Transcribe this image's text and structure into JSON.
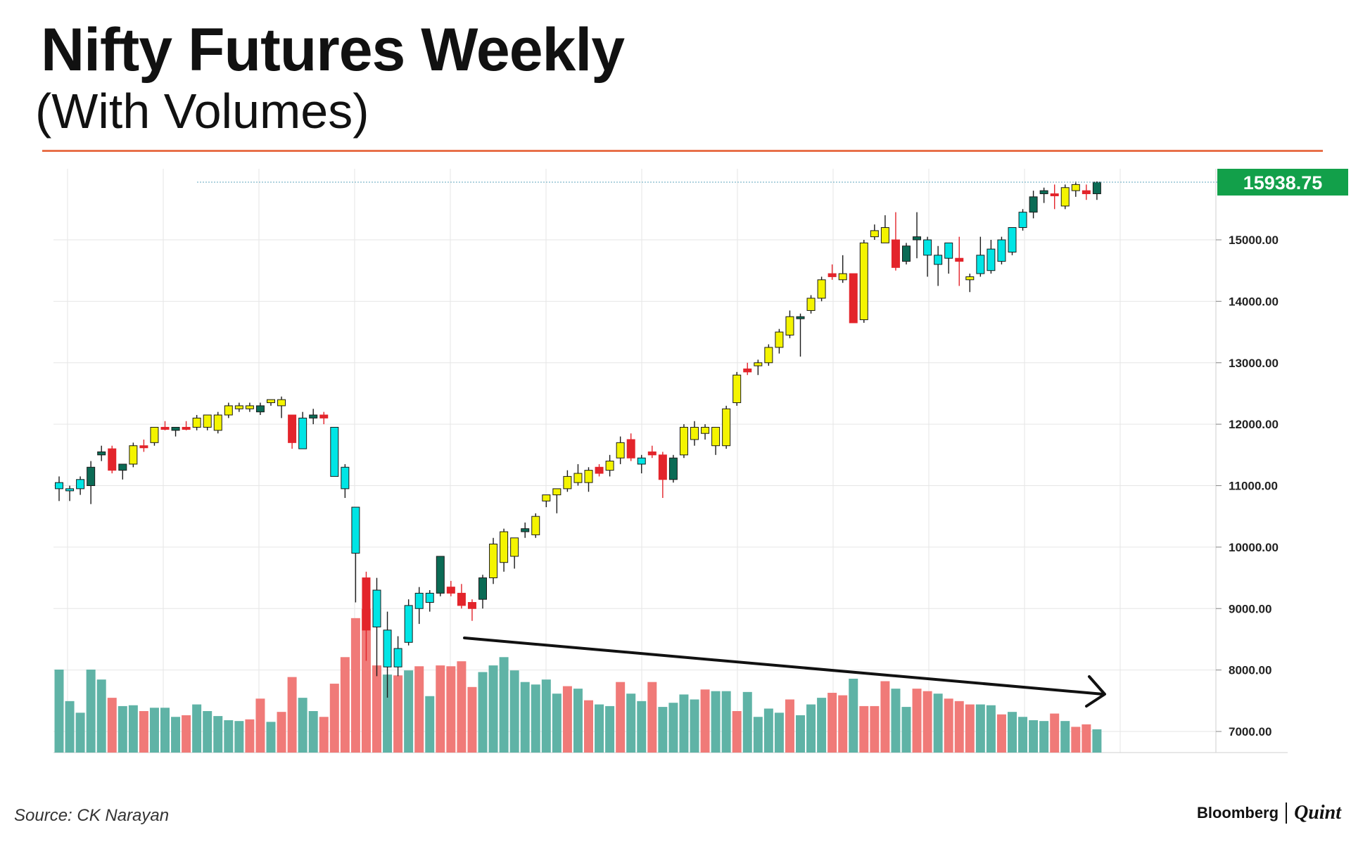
{
  "header": {
    "title": "Nifty Futures Weekly",
    "subtitle": "(With Volumes)"
  },
  "footer": {
    "source": "Source: CK Narayan",
    "brand_primary": "Bloomberg",
    "brand_secondary": "Quint"
  },
  "colors": {
    "rule": "#e8704a",
    "grid": "#e6e6e6",
    "up_cyan": "#00e5e5",
    "up_yellow": "#f4f400",
    "down_red": "#e3242b",
    "dark_green": "#0b6b55",
    "vol_teal": "#5fb3a6",
    "vol_red": "#f07a78",
    "price_tag": "#12a04a",
    "arrow": "#111111"
  },
  "chart_data": {
    "type": "candlestick",
    "interval": "weekly",
    "ylim": [
      6700,
      16100
    ],
    "yticks": [
      "15000.00",
      "14000.00",
      "13000.00",
      "12000.00",
      "11000.00",
      "10000.00",
      "9000.00",
      "8000.00",
      "7000.00"
    ],
    "ytick_values": [
      15000,
      14000,
      13000,
      12000,
      11000,
      10000,
      9000,
      8000,
      7000
    ],
    "last_price": "15938.75",
    "last_price_value": 15938.75,
    "legend": "none",
    "grid": true,
    "annotation": "declining volume trend arrow",
    "candles": [
      {
        "o": 11050,
        "h": 11150,
        "l": 10750,
        "c": 10950,
        "color": "cyan"
      },
      {
        "o": 10950,
        "h": 11000,
        "l": 10750,
        "c": 10950,
        "color": "cyan"
      },
      {
        "o": 10950,
        "h": 11150,
        "l": 10850,
        "c": 11100,
        "color": "cyan"
      },
      {
        "o": 11000,
        "h": 11400,
        "l": 10700,
        "c": 11300,
        "color": "green"
      },
      {
        "o": 11500,
        "h": 11650,
        "l": 11400,
        "c": 11550,
        "color": "green"
      },
      {
        "o": 11600,
        "h": 11650,
        "l": 11200,
        "c": 11250,
        "color": "red"
      },
      {
        "o": 11250,
        "h": 11350,
        "l": 11100,
        "c": 11350,
        "color": "green"
      },
      {
        "o": 11350,
        "h": 11700,
        "l": 11300,
        "c": 11650,
        "color": "yellow"
      },
      {
        "o": 11650,
        "h": 11750,
        "l": 11550,
        "c": 11650,
        "color": "red"
      },
      {
        "o": 11700,
        "h": 11950,
        "l": 11650,
        "c": 11950,
        "color": "yellow"
      },
      {
        "o": 11950,
        "h": 12050,
        "l": 11900,
        "c": 11950,
        "color": "red"
      },
      {
        "o": 11900,
        "h": 11950,
        "l": 11800,
        "c": 11950,
        "color": "green"
      },
      {
        "o": 11950,
        "h": 12050,
        "l": 11900,
        "c": 11950,
        "color": "red"
      },
      {
        "o": 11950,
        "h": 12150,
        "l": 11900,
        "c": 12100,
        "color": "yellow"
      },
      {
        "o": 11950,
        "h": 12150,
        "l": 11900,
        "c": 12150,
        "color": "yellow"
      },
      {
        "o": 11900,
        "h": 12200,
        "l": 11850,
        "c": 12150,
        "color": "yellow"
      },
      {
        "o": 12150,
        "h": 12350,
        "l": 12100,
        "c": 12300,
        "color": "yellow"
      },
      {
        "o": 12250,
        "h": 12350,
        "l": 12200,
        "c": 12300,
        "color": "yellow"
      },
      {
        "o": 12300,
        "h": 12350,
        "l": 12200,
        "c": 12250,
        "color": "yellow"
      },
      {
        "o": 12200,
        "h": 12350,
        "l": 12150,
        "c": 12300,
        "color": "green"
      },
      {
        "o": 12350,
        "h": 12400,
        "l": 12300,
        "c": 12400,
        "color": "yellow"
      },
      {
        "o": 12400,
        "h": 12450,
        "l": 12100,
        "c": 12300,
        "color": "yellow"
      },
      {
        "o": 12150,
        "h": 12150,
        "l": 11600,
        "c": 11700,
        "color": "red"
      },
      {
        "o": 11600,
        "h": 12200,
        "l": 11600,
        "c": 12100,
        "color": "cyan"
      },
      {
        "o": 12100,
        "h": 12250,
        "l": 12000,
        "c": 12150,
        "color": "green"
      },
      {
        "o": 12150,
        "h": 12200,
        "l": 12000,
        "c": 12100,
        "color": "red"
      },
      {
        "o": 11950,
        "h": 11950,
        "l": 11150,
        "c": 11150,
        "color": "cyan"
      },
      {
        "o": 11300,
        "h": 11350,
        "l": 10800,
        "c": 10950,
        "color": "cyan"
      },
      {
        "o": 10650,
        "h": 10650,
        "l": 9100,
        "c": 9900,
        "color": "cyan"
      },
      {
        "o": 9500,
        "h": 9600,
        "l": 8150,
        "c": 8650,
        "color": "red"
      },
      {
        "o": 9300,
        "h": 9500,
        "l": 7900,
        "c": 8700,
        "color": "cyan"
      },
      {
        "o": 8650,
        "h": 8950,
        "l": 7550,
        "c": 8050,
        "color": "cyan"
      },
      {
        "o": 8050,
        "h": 8550,
        "l": 7900,
        "c": 8350,
        "color": "cyan"
      },
      {
        "o": 8450,
        "h": 9150,
        "l": 8400,
        "c": 9050,
        "color": "cyan"
      },
      {
        "o": 9000,
        "h": 9350,
        "l": 8750,
        "c": 9250,
        "color": "cyan"
      },
      {
        "o": 9100,
        "h": 9300,
        "l": 8950,
        "c": 9250,
        "color": "cyan"
      },
      {
        "o": 9250,
        "h": 9850,
        "l": 9200,
        "c": 9850,
        "color": "green"
      },
      {
        "o": 9350,
        "h": 9450,
        "l": 9200,
        "c": 9250,
        "color": "red"
      },
      {
        "o": 9250,
        "h": 9400,
        "l": 9000,
        "c": 9050,
        "color": "red"
      },
      {
        "o": 9100,
        "h": 9150,
        "l": 8800,
        "c": 9000,
        "color": "red"
      },
      {
        "o": 9150,
        "h": 9550,
        "l": 9000,
        "c": 9500,
        "color": "green"
      },
      {
        "o": 9500,
        "h": 10150,
        "l": 9400,
        "c": 10050,
        "color": "yellow"
      },
      {
        "o": 9750,
        "h": 10300,
        "l": 9600,
        "c": 10250,
        "color": "yellow"
      },
      {
        "o": 9850,
        "h": 10150,
        "l": 9650,
        "c": 10150,
        "color": "yellow"
      },
      {
        "o": 10250,
        "h": 10400,
        "l": 10150,
        "c": 10300,
        "color": "green"
      },
      {
        "o": 10200,
        "h": 10550,
        "l": 10150,
        "c": 10500,
        "color": "yellow"
      },
      {
        "o": 10750,
        "h": 10850,
        "l": 10650,
        "c": 10850,
        "color": "yellow"
      },
      {
        "o": 10850,
        "h": 10950,
        "l": 10550,
        "c": 10950,
        "color": "yellow"
      },
      {
        "o": 10950,
        "h": 11250,
        "l": 10900,
        "c": 11150,
        "color": "yellow"
      },
      {
        "o": 11050,
        "h": 11350,
        "l": 11000,
        "c": 11200,
        "color": "yellow"
      },
      {
        "o": 11050,
        "h": 11300,
        "l": 10900,
        "c": 11250,
        "color": "yellow"
      },
      {
        "o": 11200,
        "h": 11350,
        "l": 11150,
        "c": 11300,
        "color": "red"
      },
      {
        "o": 11250,
        "h": 11500,
        "l": 11150,
        "c": 11400,
        "color": "yellow"
      },
      {
        "o": 11450,
        "h": 11800,
        "l": 11350,
        "c": 11700,
        "color": "yellow"
      },
      {
        "o": 11750,
        "h": 11850,
        "l": 11400,
        "c": 11450,
        "color": "red"
      },
      {
        "o": 11350,
        "h": 11500,
        "l": 11200,
        "c": 11450,
        "color": "cyan"
      },
      {
        "o": 11500,
        "h": 11650,
        "l": 11450,
        "c": 11550,
        "color": "red"
      },
      {
        "o": 11500,
        "h": 11550,
        "l": 10800,
        "c": 11100,
        "color": "red"
      },
      {
        "o": 11100,
        "h": 11500,
        "l": 11050,
        "c": 11450,
        "color": "green"
      },
      {
        "o": 11500,
        "h": 12000,
        "l": 11450,
        "c": 11950,
        "color": "yellow"
      },
      {
        "o": 11750,
        "h": 12050,
        "l": 11650,
        "c": 11950,
        "color": "yellow"
      },
      {
        "o": 11850,
        "h": 12000,
        "l": 11750,
        "c": 11950,
        "color": "yellow"
      },
      {
        "o": 11650,
        "h": 11950,
        "l": 11500,
        "c": 11950,
        "color": "yellow"
      },
      {
        "o": 11650,
        "h": 12300,
        "l": 11600,
        "c": 12250,
        "color": "yellow"
      },
      {
        "o": 12350,
        "h": 12850,
        "l": 12300,
        "c": 12800,
        "color": "yellow"
      },
      {
        "o": 12900,
        "h": 13000,
        "l": 12800,
        "c": 12850,
        "color": "red"
      },
      {
        "o": 12950,
        "h": 13050,
        "l": 12800,
        "c": 13000,
        "color": "yellow"
      },
      {
        "o": 13000,
        "h": 13300,
        "l": 12950,
        "c": 13250,
        "color": "yellow"
      },
      {
        "o": 13250,
        "h": 13550,
        "l": 13150,
        "c": 13500,
        "color": "yellow"
      },
      {
        "o": 13450,
        "h": 13850,
        "l": 13400,
        "c": 13750,
        "color": "yellow"
      },
      {
        "o": 13750,
        "h": 13800,
        "l": 13100,
        "c": 13750,
        "color": "green"
      },
      {
        "o": 13850,
        "h": 14100,
        "l": 13800,
        "c": 14050,
        "color": "yellow"
      },
      {
        "o": 14050,
        "h": 14400,
        "l": 14000,
        "c": 14350,
        "color": "yellow"
      },
      {
        "o": 14400,
        "h": 14600,
        "l": 14350,
        "c": 14450,
        "color": "red"
      },
      {
        "o": 14450,
        "h": 14750,
        "l": 14300,
        "c": 14350,
        "color": "yellow"
      },
      {
        "o": 14450,
        "h": 14450,
        "l": 13650,
        "c": 13650,
        "color": "red"
      },
      {
        "o": 13700,
        "h": 15000,
        "l": 13650,
        "c": 14950,
        "color": "yellow"
      },
      {
        "o": 15050,
        "h": 15250,
        "l": 15000,
        "c": 15150,
        "color": "yellow"
      },
      {
        "o": 15200,
        "h": 15400,
        "l": 14950,
        "c": 14950,
        "color": "yellow"
      },
      {
        "o": 15000,
        "h": 15450,
        "l": 14500,
        "c": 14550,
        "color": "red"
      },
      {
        "o": 14650,
        "h": 14950,
        "l": 14600,
        "c": 14900,
        "color": "green"
      },
      {
        "o": 15000,
        "h": 15450,
        "l": 14700,
        "c": 15050,
        "color": "green"
      },
      {
        "o": 15000,
        "h": 15050,
        "l": 14400,
        "c": 14750,
        "color": "cyan"
      },
      {
        "o": 14600,
        "h": 14900,
        "l": 14250,
        "c": 14750,
        "color": "cyan"
      },
      {
        "o": 14700,
        "h": 14950,
        "l": 14450,
        "c": 14950,
        "color": "cyan"
      },
      {
        "o": 14700,
        "h": 15050,
        "l": 14250,
        "c": 14650,
        "color": "red"
      },
      {
        "o": 14400,
        "h": 14450,
        "l": 14150,
        "c": 14350,
        "color": "yellow"
      },
      {
        "o": 14450,
        "h": 15050,
        "l": 14400,
        "c": 14750,
        "color": "cyan"
      },
      {
        "o": 14500,
        "h": 15000,
        "l": 14450,
        "c": 14850,
        "color": "cyan"
      },
      {
        "o": 14650,
        "h": 15050,
        "l": 14600,
        "c": 15000,
        "color": "cyan"
      },
      {
        "o": 14800,
        "h": 15200,
        "l": 14750,
        "c": 15200,
        "color": "cyan"
      },
      {
        "o": 15200,
        "h": 15500,
        "l": 15150,
        "c": 15450,
        "color": "cyan"
      },
      {
        "o": 15450,
        "h": 15800,
        "l": 15350,
        "c": 15700,
        "color": "green"
      },
      {
        "o": 15750,
        "h": 15850,
        "l": 15600,
        "c": 15800,
        "color": "green"
      },
      {
        "o": 15750,
        "h": 15900,
        "l": 15500,
        "c": 15750,
        "color": "red"
      },
      {
        "o": 15550,
        "h": 15900,
        "l": 15500,
        "c": 15850,
        "color": "yellow"
      },
      {
        "o": 15800,
        "h": 15950,
        "l": 15700,
        "c": 15900,
        "color": "yellow"
      },
      {
        "o": 15800,
        "h": 15900,
        "l": 15650,
        "c": 15750,
        "color": "red"
      },
      {
        "o": 15750,
        "h": 15950,
        "l": 15650,
        "c": 15938.75,
        "color": "green"
      }
    ],
    "volumes": [
      {
        "v": 1.0,
        "color": "teal"
      },
      {
        "v": 0.62,
        "color": "teal"
      },
      {
        "v": 0.48,
        "color": "teal"
      },
      {
        "v": 1.0,
        "color": "teal"
      },
      {
        "v": 0.88,
        "color": "teal"
      },
      {
        "v": 0.66,
        "color": "red"
      },
      {
        "v": 0.56,
        "color": "teal"
      },
      {
        "v": 0.57,
        "color": "teal"
      },
      {
        "v": 0.5,
        "color": "red"
      },
      {
        "v": 0.54,
        "color": "teal"
      },
      {
        "v": 0.54,
        "color": "teal"
      },
      {
        "v": 0.43,
        "color": "teal"
      },
      {
        "v": 0.45,
        "color": "red"
      },
      {
        "v": 0.58,
        "color": "teal"
      },
      {
        "v": 0.5,
        "color": "teal"
      },
      {
        "v": 0.44,
        "color": "teal"
      },
      {
        "v": 0.39,
        "color": "teal"
      },
      {
        "v": 0.38,
        "color": "teal"
      },
      {
        "v": 0.4,
        "color": "red"
      },
      {
        "v": 0.65,
        "color": "red"
      },
      {
        "v": 0.37,
        "color": "teal"
      },
      {
        "v": 0.49,
        "color": "red"
      },
      {
        "v": 0.91,
        "color": "red"
      },
      {
        "v": 0.66,
        "color": "teal"
      },
      {
        "v": 0.5,
        "color": "teal"
      },
      {
        "v": 0.43,
        "color": "red"
      },
      {
        "v": 0.83,
        "color": "red"
      },
      {
        "v": 1.15,
        "color": "red"
      },
      {
        "v": 1.62,
        "color": "red"
      },
      {
        "v": 1.73,
        "color": "red"
      },
      {
        "v": 1.05,
        "color": "red"
      },
      {
        "v": 0.94,
        "color": "teal"
      },
      {
        "v": 0.93,
        "color": "red"
      },
      {
        "v": 0.99,
        "color": "teal"
      },
      {
        "v": 1.04,
        "color": "red"
      },
      {
        "v": 0.68,
        "color": "teal"
      },
      {
        "v": 1.05,
        "color": "red"
      },
      {
        "v": 1.04,
        "color": "red"
      },
      {
        "v": 1.1,
        "color": "red"
      },
      {
        "v": 0.79,
        "color": "red"
      },
      {
        "v": 0.97,
        "color": "teal"
      },
      {
        "v": 1.05,
        "color": "teal"
      },
      {
        "v": 1.15,
        "color": "teal"
      },
      {
        "v": 0.99,
        "color": "teal"
      },
      {
        "v": 0.85,
        "color": "teal"
      },
      {
        "v": 0.82,
        "color": "teal"
      },
      {
        "v": 0.88,
        "color": "teal"
      },
      {
        "v": 0.71,
        "color": "teal"
      },
      {
        "v": 0.8,
        "color": "red"
      },
      {
        "v": 0.77,
        "color": "teal"
      },
      {
        "v": 0.63,
        "color": "red"
      },
      {
        "v": 0.58,
        "color": "teal"
      },
      {
        "v": 0.56,
        "color": "teal"
      },
      {
        "v": 0.85,
        "color": "red"
      },
      {
        "v": 0.71,
        "color": "teal"
      },
      {
        "v": 0.62,
        "color": "teal"
      },
      {
        "v": 0.85,
        "color": "red"
      },
      {
        "v": 0.55,
        "color": "teal"
      },
      {
        "v": 0.6,
        "color": "teal"
      },
      {
        "v": 0.7,
        "color": "teal"
      },
      {
        "v": 0.64,
        "color": "teal"
      },
      {
        "v": 0.76,
        "color": "red"
      },
      {
        "v": 0.74,
        "color": "teal"
      },
      {
        "v": 0.74,
        "color": "teal"
      },
      {
        "v": 0.5,
        "color": "red"
      },
      {
        "v": 0.73,
        "color": "teal"
      },
      {
        "v": 0.43,
        "color": "teal"
      },
      {
        "v": 0.53,
        "color": "teal"
      },
      {
        "v": 0.48,
        "color": "teal"
      },
      {
        "v": 0.64,
        "color": "red"
      },
      {
        "v": 0.45,
        "color": "teal"
      },
      {
        "v": 0.58,
        "color": "teal"
      },
      {
        "v": 0.66,
        "color": "teal"
      },
      {
        "v": 0.72,
        "color": "red"
      },
      {
        "v": 0.69,
        "color": "red"
      },
      {
        "v": 0.89,
        "color": "teal"
      },
      {
        "v": 0.56,
        "color": "red"
      },
      {
        "v": 0.56,
        "color": "red"
      },
      {
        "v": 0.86,
        "color": "red"
      },
      {
        "v": 0.77,
        "color": "teal"
      },
      {
        "v": 0.55,
        "color": "teal"
      },
      {
        "v": 0.77,
        "color": "red"
      },
      {
        "v": 0.74,
        "color": "red"
      },
      {
        "v": 0.71,
        "color": "teal"
      },
      {
        "v": 0.65,
        "color": "red"
      },
      {
        "v": 0.62,
        "color": "red"
      },
      {
        "v": 0.58,
        "color": "red"
      },
      {
        "v": 0.58,
        "color": "teal"
      },
      {
        "v": 0.57,
        "color": "teal"
      },
      {
        "v": 0.46,
        "color": "red"
      },
      {
        "v": 0.49,
        "color": "teal"
      },
      {
        "v": 0.43,
        "color": "teal"
      },
      {
        "v": 0.39,
        "color": "teal"
      },
      {
        "v": 0.38,
        "color": "teal"
      },
      {
        "v": 0.47,
        "color": "red"
      },
      {
        "v": 0.38,
        "color": "teal"
      },
      {
        "v": 0.31,
        "color": "red"
      },
      {
        "v": 0.34,
        "color": "red"
      },
      {
        "v": 0.28,
        "color": "teal"
      }
    ]
  }
}
